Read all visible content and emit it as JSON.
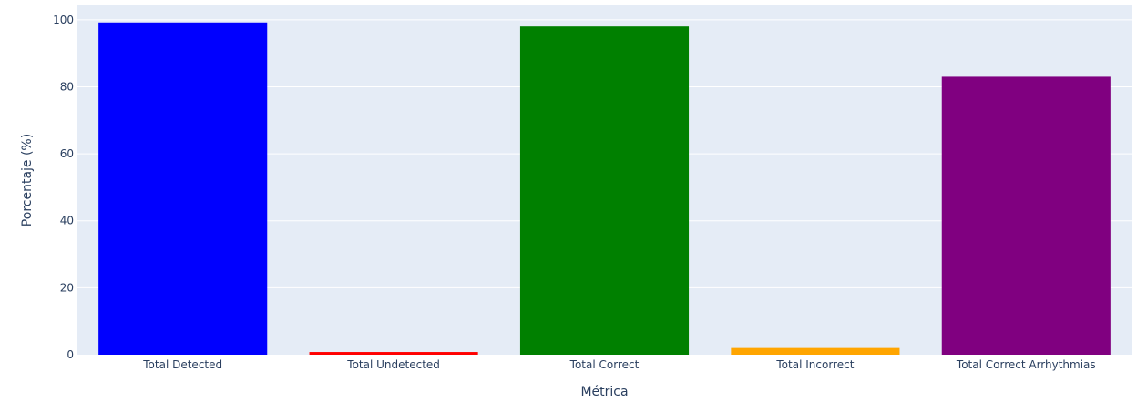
{
  "chart_data": {
    "type": "bar",
    "categories": [
      "Total Detected",
      "Total Undetected",
      "Total Correct",
      "Total Incorrect",
      "Total Correct Arrhythmias"
    ],
    "values": [
      99.2,
      0.8,
      98.0,
      2.0,
      83.0
    ],
    "colors": [
      "#0000ff",
      "#ff0000",
      "#008000",
      "#ffa500",
      "#800080"
    ],
    "xlabel": "Métrica",
    "ylabel": "Porcentaje (%)",
    "ylim": [
      0,
      104.3
    ],
    "yticks": [
      0,
      20,
      40,
      60,
      80,
      100
    ],
    "ytick_labels": [
      "0",
      "20",
      "40",
      "60",
      "80",
      "100"
    ],
    "grid": true,
    "plot_background": "#e5ecf6",
    "grid_color": "#ffffff"
  }
}
